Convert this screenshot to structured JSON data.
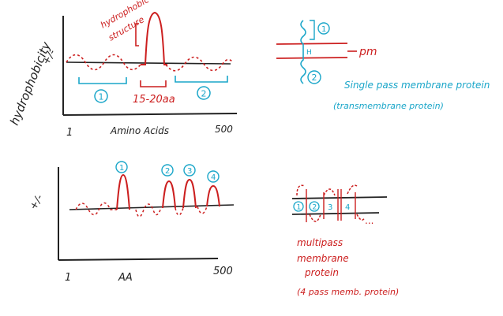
{
  "colors": {
    "ink": "#222222",
    "red": "#cc1f1f",
    "blue": "#1aa6c9"
  },
  "top_plot": {
    "ylabel": "hydrophobicity",
    "ysign": "+/-",
    "xlabel": "Amino Acids",
    "x_start": "1",
    "x_end": "500",
    "peak_label_line1": "hydrophobic",
    "peak_label_line2": "structure",
    "span_label": "15-20aa",
    "segment_1": "1",
    "segment_2": "2"
  },
  "single_pass": {
    "helix_label": "H",
    "membrane_label": "pm",
    "domain_1": "1",
    "domain_2": "2",
    "caption_line1": "Single pass membrane protein",
    "caption_line2": "(transmembrane protein)"
  },
  "bottom_plot": {
    "ysign": "+/-",
    "xlabel": "AA",
    "x_start": "1",
    "x_end": "500",
    "peak_1": "1",
    "peak_2": "2",
    "peak_3": "3",
    "peak_4": "4"
  },
  "multi_pass": {
    "segment_1": "1",
    "segment_2": "2",
    "segment_3": "3",
    "segment_4": "4",
    "ellipsis": "...",
    "caption_line1": "multipass",
    "caption_line2": "membrane",
    "caption_line3": "protein",
    "caption_line4": "(4 pass memb. protein)"
  }
}
